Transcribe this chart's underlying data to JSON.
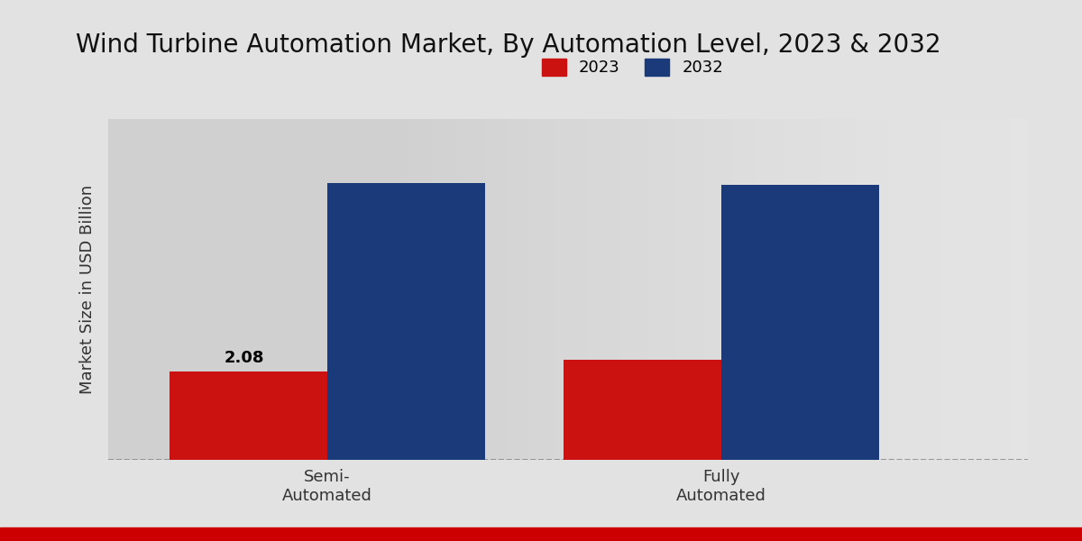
{
  "title": "Wind Turbine Automation Market, By Automation Level, 2023 & 2032",
  "ylabel": "Market Size in USD Billion",
  "categories": [
    "Semi-\nAutomated",
    "Fully\nAutomated"
  ],
  "values_2023": [
    2.08,
    2.35
  ],
  "values_2032": [
    6.5,
    6.45
  ],
  "color_2023": "#cc1111",
  "color_2032": "#1a3a7a",
  "label_2023": "2023",
  "label_2032": "2032",
  "annotation_value": "2.08",
  "bar_width": 0.18,
  "bg_color_left": "#d8d8d8",
  "bg_color_right": "#f0f0f0",
  "title_fontsize": 20,
  "axis_label_fontsize": 13,
  "tick_label_fontsize": 13,
  "legend_fontsize": 13,
  "annotation_fontsize": 13,
  "ylim": [
    0,
    8
  ],
  "bottom_bar_color": "#cc0000",
  "x_positions": [
    0.3,
    0.75
  ]
}
